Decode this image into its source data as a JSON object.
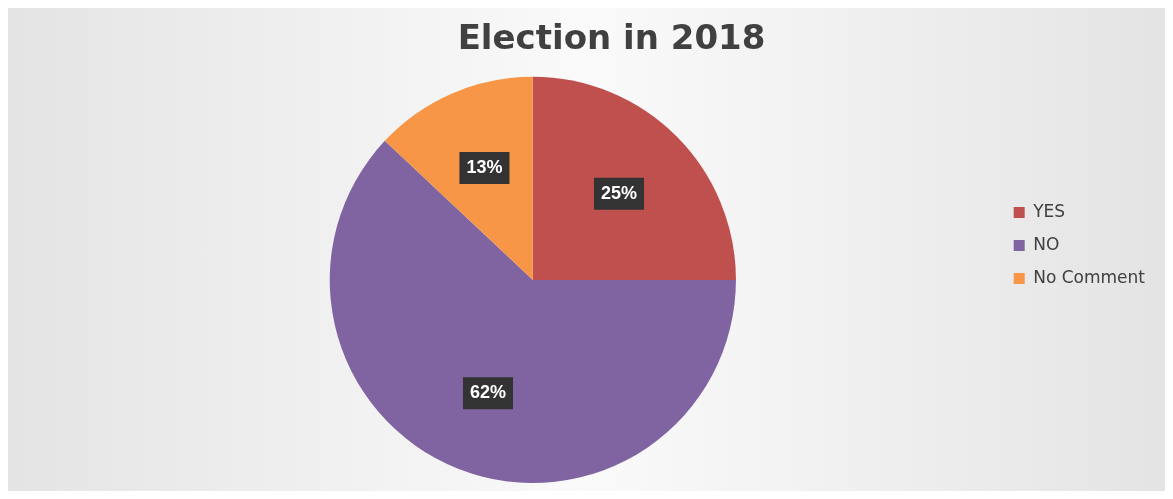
{
  "chart_data": {
    "type": "pie",
    "title": "Election in 2018",
    "categories": [
      "YES",
      "NO",
      "No Comment"
    ],
    "values": [
      25,
      62,
      13
    ],
    "colors": [
      "#c0504d",
      "#8064a2",
      "#f79646"
    ],
    "value_labels": [
      "25%",
      "62%",
      "13%"
    ],
    "legend": "right"
  }
}
